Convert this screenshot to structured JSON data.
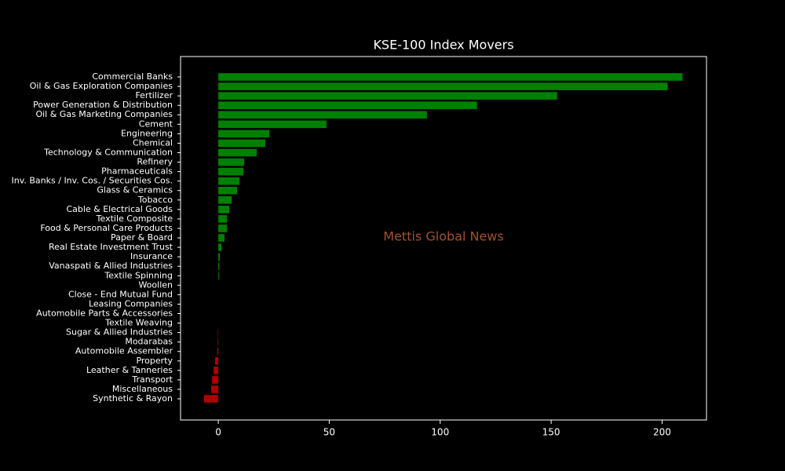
{
  "chart_data": {
    "type": "barh",
    "title": "KSE-100 Index Movers",
    "annotation": "Mettis Global News",
    "annotation_color": "#a0522d",
    "categories": [
      "Commercial Banks",
      "Oil & Gas Exploration Companies",
      "Fertilizer",
      "Power Generation & Distribution",
      "Oil & Gas Marketing Companies",
      "Cement",
      "Engineering",
      "Chemical",
      "Technology & Communication",
      "Refinery",
      "Pharmaceuticals",
      "Inv. Banks / Inv. Cos. / Securities Cos.",
      "Glass & Ceramics",
      "Tobacco",
      "Cable & Electrical Goods",
      "Textile Composite",
      "Food & Personal Care Products",
      "Paper & Board",
      "Real Estate Investment Trust",
      "Insurance",
      "Vanaspati & Allied Industries",
      "Textile Spinning",
      "Woollen",
      "Close - End Mutual Fund",
      "Leasing Companies",
      "Automobile Parts & Accessories",
      "Textile Weaving",
      "Sugar & Allied Industries",
      "Modarabas",
      "Automobile Assembler",
      "Property",
      "Leather & Tanneries",
      "Transport",
      "Miscellaneous",
      "Synthetic & Rayon"
    ],
    "values": [
      209.2,
      202.5,
      152.7,
      116.6,
      94,
      48.8,
      23,
      21.2,
      17.3,
      11.7,
      11.3,
      9.5,
      8.5,
      6,
      5,
      3.9,
      3.9,
      2.8,
      1.4,
      0.7,
      0.5,
      0.3,
      0,
      0,
      0,
      0,
      0,
      -0.2,
      -0.3,
      -0.5,
      -1.4,
      -2.1,
      -2.8,
      -3.2,
      -6.4
    ],
    "positive_color": "#008000",
    "negative_color": "#b00000",
    "xlim": [
      -17,
      220
    ],
    "xticks": [
      0,
      50,
      100,
      150,
      200
    ]
  }
}
